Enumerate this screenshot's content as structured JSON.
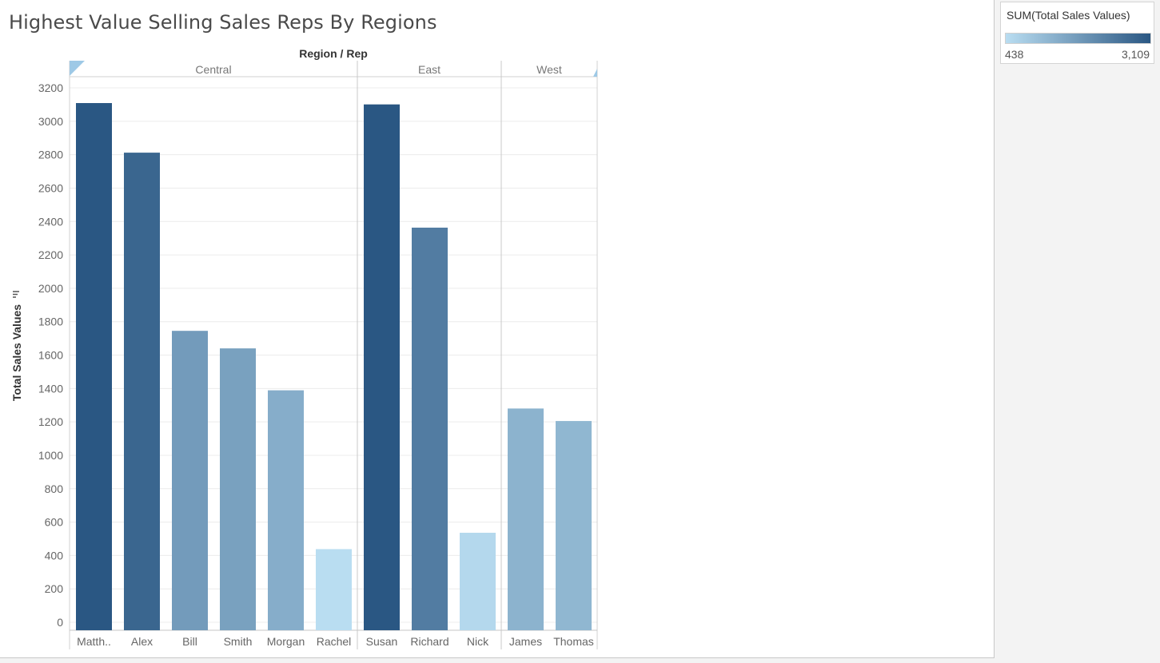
{
  "title": "Highest Value Selling Sales Reps By Regions",
  "legend": {
    "title": "SUM(Total Sales Values)",
    "min_label": "438",
    "max_label": "3,109",
    "colors": [
      "#b9ddf1",
      "#2a5783"
    ]
  },
  "chart_data": {
    "type": "bar",
    "title": "Highest Value Selling Sales Reps By Regions",
    "xlabel": "Region / Rep",
    "ylabel": "Total Sales Values",
    "ylim": [
      0,
      3200
    ],
    "yticks": [
      0,
      200,
      400,
      600,
      800,
      1000,
      1200,
      1400,
      1600,
      1800,
      2000,
      2200,
      2400,
      2600,
      2800,
      3000,
      3200
    ],
    "grid": true,
    "regions": [
      {
        "name": "Central",
        "categories": [
          "Matth..",
          "Alex",
          "Bill",
          "Smith",
          "Morgan",
          "Rachel"
        ],
        "values": [
          3109,
          2812,
          1745,
          1640,
          1389,
          438
        ]
      },
      {
        "name": "East",
        "categories": [
          "Susan",
          "Richard",
          "Nick"
        ],
        "values": [
          3101,
          2363,
          536
        ]
      },
      {
        "name": "West",
        "categories": [
          "James",
          "Thomas"
        ],
        "values": [
          1280,
          1205
        ]
      }
    ]
  }
}
